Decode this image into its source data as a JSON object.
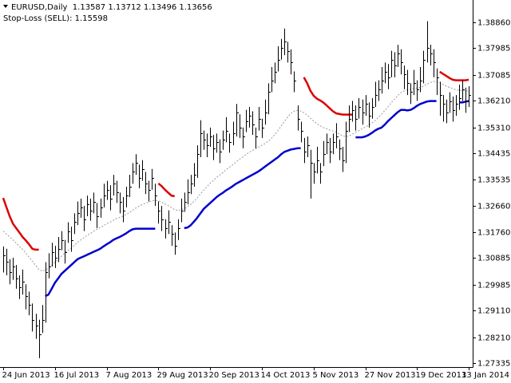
{
  "chart_data": {
    "type": "ohlc",
    "title": "EURUSD,Daily  1.13587 1.13712 1.13496 1.13656",
    "subtitle": "Stop-Loss (SELL): 1.15598",
    "color": "#000000",
    "ylim": [
      1.272,
      1.39562
    ],
    "yticks": [
      {
        "value": 1.3886,
        "label": "1.38860"
      },
      1.37985,
      1.37085,
      {
        "value": 1.3621,
        "label": "1.36210"
      },
      {
        "value": 1.3531,
        "label": "1.35310"
      },
      1.34435,
      1.33535,
      {
        "value": 1.3266,
        "label": "1.32660"
      },
      {
        "value": 1.3176,
        "label": "1.31760"
      },
      1.30885,
      1.29985,
      {
        "value": 1.2911,
        "label": "1.29110"
      },
      {
        "value": 1.2821,
        "label": "1.28210"
      },
      1.27335
    ],
    "xlim": [
      -1,
      145.2
    ],
    "xticks": [
      {
        "value": 0,
        "label": "24 Jun 2013"
      },
      {
        "value": 16,
        "label": "16 Jul 2013"
      },
      {
        "value": 32,
        "label": "7 Aug 2013"
      },
      {
        "value": 48,
        "label": "29 Aug 2013"
      },
      {
        "value": 64,
        "label": "20 Sep 2013"
      },
      {
        "value": 80,
        "label": "14 Oct 2013"
      },
      {
        "value": 96,
        "label": "5 Nov 2013"
      },
      {
        "value": 112,
        "label": "27 Nov 2013"
      },
      {
        "value": 128,
        "label": "19 Dec 2013"
      },
      {
        "value": 144,
        "label": "13 Jan 2014"
      }
    ],
    "high": [
      1.3128,
      1.312,
      1.3085,
      1.309,
      1.3065,
      1.303,
      1.305,
      1.3,
      1.2975,
      1.2935,
      1.29,
      1.288,
      1.293,
      1.3075,
      1.3105,
      1.314,
      1.313,
      1.316,
      1.318,
      1.315,
      1.321,
      1.3195,
      1.324,
      1.328,
      1.329,
      1.3265,
      1.33,
      1.329,
      1.331,
      1.3275,
      1.329,
      1.334,
      1.335,
      1.3335,
      1.337,
      1.335,
      1.331,
      1.3295,
      1.333,
      1.337,
      1.341,
      1.344,
      1.3405,
      1.342,
      1.338,
      1.335,
      1.339,
      1.334,
      1.328,
      1.3265,
      1.322,
      1.325,
      1.32,
      1.3175,
      1.322,
      1.329,
      1.331,
      1.3355,
      1.337,
      1.341,
      1.347,
      1.3555,
      1.352,
      1.351,
      1.353,
      1.3505,
      1.351,
      1.349,
      1.352,
      1.3565,
      1.351,
      1.355,
      1.361,
      1.3575,
      1.353,
      1.359,
      1.36,
      1.3585,
      1.353,
      1.36,
      1.356,
      1.3625,
      1.368,
      1.3735,
      1.375,
      1.3805,
      1.383,
      1.3865,
      1.382,
      1.3795,
      1.372,
      1.3605,
      1.355,
      1.3495,
      1.35,
      1.3455,
      1.341,
      1.3465,
      1.341,
      1.3485,
      1.351,
      1.3495,
      1.351,
      1.3545,
      1.349,
      1.3465,
      1.355,
      1.3605,
      1.362,
      1.3605,
      1.363,
      1.3625,
      1.364,
      1.3615,
      1.363,
      1.3685,
      1.369,
      1.3735,
      1.375,
      1.3745,
      1.379,
      1.3785,
      1.381,
      1.3795,
      1.374,
      1.3725,
      1.368,
      1.3725,
      1.369,
      1.3735,
      1.379,
      1.389,
      1.381,
      1.3795,
      1.373,
      1.3685,
      1.364,
      1.3625,
      1.365,
      1.3635,
      1.364,
      1.3675,
      1.369,
      1.3665,
      1.367
    ],
    "low": [
      1.304,
      1.303,
      1.3,
      1.3015,
      1.2985,
      1.295,
      1.2965,
      1.2915,
      1.2895,
      1.284,
      1.2815,
      1.275,
      1.2835,
      1.287,
      1.302,
      1.306,
      1.3055,
      1.3075,
      1.3115,
      1.307,
      1.314,
      1.311,
      1.317,
      1.32,
      1.3225,
      1.318,
      1.323,
      1.3215,
      1.324,
      1.319,
      1.3225,
      1.326,
      1.3285,
      1.325,
      1.33,
      1.3275,
      1.324,
      1.321,
      1.326,
      1.3295,
      1.334,
      1.337,
      1.3325,
      1.335,
      1.3305,
      1.328,
      1.332,
      1.3265,
      1.3205,
      1.318,
      1.3155,
      1.317,
      1.313,
      1.31,
      1.315,
      1.321,
      1.3245,
      1.327,
      1.3305,
      1.333,
      1.336,
      1.343,
      1.3455,
      1.343,
      1.3465,
      1.342,
      1.3445,
      1.341,
      1.3455,
      1.348,
      1.3445,
      1.347,
      1.35,
      1.3495,
      1.346,
      1.3515,
      1.353,
      1.3505,
      1.346,
      1.352,
      1.3495,
      1.354,
      1.3575,
      1.365,
      1.368,
      1.372,
      1.376,
      1.3775,
      1.375,
      1.371,
      1.365,
      1.352,
      1.348,
      1.341,
      1.343,
      1.329,
      1.334,
      1.3375,
      1.334,
      1.34,
      1.344,
      1.341,
      1.344,
      1.346,
      1.342,
      1.338,
      1.341,
      1.3515,
      1.355,
      1.352,
      1.356,
      1.354,
      1.357,
      1.353,
      1.356,
      1.36,
      1.362,
      1.3645,
      1.368,
      1.366,
      1.37,
      1.37,
      1.3735,
      1.371,
      1.366,
      1.364,
      1.361,
      1.364,
      1.362,
      1.365,
      1.368,
      1.375,
      1.374,
      1.37,
      1.364,
      1.357,
      1.355,
      1.3545,
      1.358,
      1.355,
      1.357,
      1.359,
      1.362,
      1.358,
      1.36
    ],
    "close": [
      1.3098,
      1.3075,
      1.304,
      1.306,
      1.302,
      1.299,
      1.301,
      1.296,
      1.293,
      1.288,
      1.286,
      1.283,
      1.288,
      1.304,
      1.306,
      1.311,
      1.309,
      1.312,
      1.315,
      1.311,
      1.318,
      1.315,
      1.321,
      1.324,
      1.326,
      1.322,
      1.327,
      1.325,
      1.328,
      1.323,
      1.326,
      1.33,
      1.332,
      1.329,
      1.334,
      1.331,
      1.328,
      1.325,
      1.33,
      1.333,
      1.338,
      1.341,
      1.336,
      1.339,
      1.334,
      1.332,
      1.336,
      1.33,
      1.325,
      1.322,
      1.319,
      1.321,
      1.317,
      1.313,
      1.319,
      1.325,
      1.328,
      1.331,
      1.334,
      1.337,
      1.344,
      1.351,
      1.349,
      1.347,
      1.35,
      1.346,
      1.348,
      1.345,
      1.349,
      1.352,
      1.348,
      1.351,
      1.358,
      1.353,
      1.35,
      1.355,
      1.357,
      1.354,
      1.35,
      1.356,
      1.353,
      1.358,
      1.365,
      1.369,
      1.372,
      1.376,
      1.38,
      1.382,
      1.379,
      1.375,
      1.369,
      1.356,
      1.352,
      1.345,
      1.347,
      1.341,
      1.338,
      1.342,
      1.338,
      1.344,
      1.348,
      1.345,
      1.348,
      1.35,
      1.346,
      1.342,
      1.352,
      1.356,
      1.359,
      1.356,
      1.36,
      1.358,
      1.361,
      1.357,
      1.36,
      1.364,
      1.366,
      1.369,
      1.372,
      1.37,
      1.376,
      1.374,
      1.378,
      1.375,
      1.371,
      1.368,
      1.365,
      1.368,
      1.366,
      1.369,
      1.376,
      1.38,
      1.378,
      1.375,
      1.37,
      1.364,
      1.361,
      1.358,
      1.362,
      1.359,
      1.361,
      1.363,
      1.366,
      1.362,
      1.364
    ],
    "series": [
      {
        "color": "#999999",
        "style": "dotted",
        "values": [
          1.318,
          1.317,
          1.316,
          1.315,
          1.314,
          1.3128,
          1.3118,
          1.3105,
          1.3092,
          1.3078,
          1.3065,
          1.305,
          1.3045,
          1.3048,
          1.3055,
          1.3065,
          1.3075,
          1.3085,
          1.3095,
          1.3105,
          1.3115,
          1.3122,
          1.3132,
          1.3142,
          1.315,
          1.3158,
          1.3166,
          1.3172,
          1.318,
          1.3186,
          1.3192,
          1.3198,
          1.3205,
          1.321,
          1.3216,
          1.3222,
          1.3226,
          1.323,
          1.3236,
          1.3242,
          1.325,
          1.3258,
          1.3264,
          1.327,
          1.3274,
          1.3278,
          1.3282,
          1.3284,
          1.3282,
          1.3278,
          1.3272,
          1.3266,
          1.326,
          1.3252,
          1.325,
          1.3252,
          1.3256,
          1.3262,
          1.327,
          1.328,
          1.3292,
          1.3306,
          1.3318,
          1.333,
          1.3342,
          1.3352,
          1.3362,
          1.337,
          1.3378,
          1.3388,
          1.3396,
          1.3404,
          1.3414,
          1.3422,
          1.343,
          1.3438,
          1.3446,
          1.3452,
          1.3458,
          1.3464,
          1.347,
          1.3476,
          1.3484,
          1.3494,
          1.3506,
          1.352,
          1.3536,
          1.3552,
          1.3566,
          1.3578,
          1.3586,
          1.3588,
          1.3586,
          1.358,
          1.3572,
          1.3562,
          1.3552,
          1.3544,
          1.3536,
          1.353,
          1.3526,
          1.3522,
          1.3518,
          1.3514,
          1.3508,
          1.3502,
          1.35,
          1.3502,
          1.3508,
          1.3514,
          1.352,
          1.3526,
          1.3532,
          1.3538,
          1.3545,
          1.3554,
          1.3564,
          1.3575,
          1.3588,
          1.36,
          1.3614,
          1.3626,
          1.3638,
          1.3648,
          1.3654,
          1.3658,
          1.366,
          1.3662,
          1.3664,
          1.3666,
          1.367,
          1.3676,
          1.3682,
          1.3686,
          1.3686,
          1.3682,
          1.3676,
          1.367,
          1.3666,
          1.3662,
          1.3658,
          1.3656,
          1.3656,
          1.3654,
          1.3654
        ]
      },
      {
        "color": "#0000cc",
        "style": "solid",
        "values": [
          null,
          null,
          null,
          null,
          null,
          null,
          null,
          null,
          null,
          null,
          null,
          null,
          null,
          1.296,
          1.2965,
          1.2985,
          1.3005,
          1.302,
          1.3035,
          1.3045,
          1.3055,
          1.3065,
          1.3075,
          1.3085,
          1.309,
          1.3095,
          1.31,
          1.3105,
          1.311,
          1.3115,
          1.312,
          1.3128,
          1.3135,
          1.3142,
          1.315,
          1.3155,
          1.316,
          1.3166,
          1.3172,
          1.318,
          1.3186,
          1.3188,
          1.3188,
          1.3188,
          1.3188,
          1.3188,
          1.3188,
          1.3188,
          null,
          null,
          null,
          null,
          null,
          null,
          null,
          null,
          1.319,
          1.3192,
          1.32,
          1.3212,
          1.3225,
          1.324,
          1.3255,
          1.3265,
          1.3275,
          1.3285,
          1.3295,
          1.3303,
          1.331,
          1.3318,
          1.3325,
          1.3332,
          1.334,
          1.3346,
          1.3352,
          1.3358,
          1.3364,
          1.337,
          1.3376,
          1.3382,
          1.339,
          1.3398,
          1.3406,
          1.3414,
          1.3422,
          1.343,
          1.344,
          1.3448,
          1.3452,
          1.3456,
          1.3458,
          1.346,
          1.346,
          null,
          null,
          null,
          null,
          null,
          null,
          null,
          null,
          null,
          null,
          null,
          null,
          null,
          null,
          null,
          null,
          1.3497,
          1.3497,
          1.3497,
          1.35,
          1.3505,
          1.3512,
          1.352,
          1.3526,
          1.353,
          1.354,
          1.3552,
          1.3562,
          1.3572,
          1.3582,
          1.359,
          1.359,
          1.3588,
          1.359,
          1.3596,
          1.3604,
          1.361,
          1.3614,
          1.3618,
          1.362,
          1.362,
          1.362,
          null,
          null,
          null,
          null,
          null,
          null,
          1.3615,
          1.3615,
          1.3618,
          1.362
        ]
      },
      {
        "color": "#dd0000",
        "style": "solid",
        "values": [
          1.3292,
          1.326,
          1.323,
          1.3205,
          1.319,
          1.3175,
          1.316,
          1.3148,
          1.3135,
          1.312,
          1.3117,
          1.3117,
          null,
          null,
          null,
          null,
          null,
          null,
          null,
          null,
          null,
          null,
          null,
          null,
          null,
          null,
          null,
          null,
          null,
          null,
          null,
          null,
          null,
          null,
          null,
          null,
          null,
          null,
          null,
          null,
          null,
          null,
          null,
          null,
          null,
          null,
          null,
          null,
          1.3341,
          1.3332,
          1.332,
          1.331,
          1.33,
          1.3298,
          null,
          null,
          null,
          null,
          null,
          null,
          null,
          null,
          null,
          null,
          null,
          null,
          null,
          null,
          null,
          null,
          null,
          null,
          null,
          null,
          null,
          null,
          null,
          null,
          null,
          null,
          null,
          null,
          null,
          null,
          null,
          null,
          null,
          null,
          null,
          null,
          null,
          null,
          null,
          1.37,
          1.368,
          1.3655,
          1.3638,
          1.3628,
          1.3622,
          1.3615,
          1.3605,
          1.3595,
          1.3585,
          1.3578,
          1.3576,
          1.3574,
          1.3574,
          1.3574,
          1.3574,
          null,
          null,
          null,
          null,
          null,
          null,
          null,
          null,
          null,
          null,
          null,
          null,
          null,
          null,
          null,
          null,
          null,
          null,
          null,
          null,
          null,
          null,
          null,
          null,
          null,
          null,
          1.3719,
          1.3712,
          1.3705,
          1.3698,
          1.3692,
          1.369,
          1.369,
          1.369,
          1.369,
          1.3692
        ]
      }
    ]
  }
}
